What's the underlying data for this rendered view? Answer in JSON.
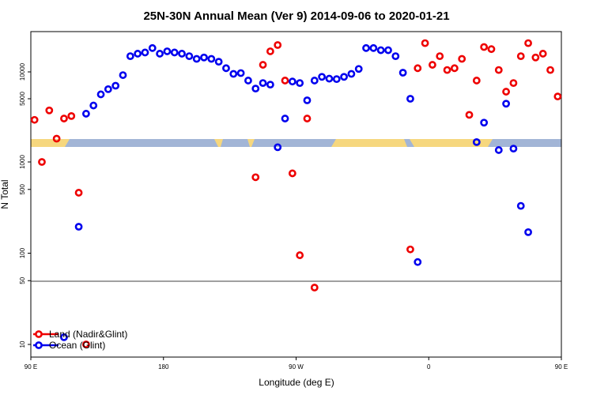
{
  "chart_data": {
    "type": "scatter",
    "title": "25N-30N Annual Mean (Ver 9)   2014-09-06 to 2020-01-21",
    "xlabel": "Longitude (deg E)",
    "ylabel": "N Total",
    "x_scale": "linear",
    "y_scale": "log",
    "xlim": [
      90,
      450
    ],
    "x_ticks": [
      {
        "value": 90,
        "label": "90 E"
      },
      {
        "value": 180,
        "label": "180"
      },
      {
        "value": 270,
        "label": "90 W"
      },
      {
        "value": 360,
        "label": "0"
      },
      {
        "value": 450,
        "label": "90 E"
      },
      {
        "value": 540,
        "label": "180"
      }
    ],
    "y_ticks": [
      {
        "value": 10,
        "label": "10"
      },
      {
        "value": 50,
        "label": "50"
      },
      {
        "value": 100,
        "label": "100"
      },
      {
        "value": 500,
        "label": "500"
      },
      {
        "value": 1000,
        "label": "1000"
      },
      {
        "value": 5000,
        "label": "5000"
      },
      {
        "value": 10000,
        "label": "10000"
      }
    ],
    "legend_position": "bottom-left",
    "series": [
      {
        "name": "Land (Nadir&Glint)",
        "color": "#ee0000",
        "points": [
          [
            92.5,
            2900
          ],
          [
            97.5,
            1000
          ],
          [
            102.5,
            3700
          ],
          [
            107.5,
            1800
          ],
          [
            112.5,
            3000
          ],
          [
            117.5,
            3200
          ],
          [
            122.5,
            460
          ],
          [
            127.5,
            10
          ],
          [
            242.5,
            680
          ],
          [
            247.5,
            12000
          ],
          [
            252.5,
            17000
          ],
          [
            257.5,
            20000
          ],
          [
            262.5,
            8000
          ],
          [
            267.5,
            750
          ],
          [
            272.5,
            95
          ],
          [
            277.5,
            3000
          ],
          [
            282.5,
            42
          ],
          [
            347.5,
            110
          ],
          [
            352.5,
            11000
          ],
          [
            357.5,
            21000
          ],
          [
            362.5,
            12000
          ],
          [
            367.5,
            15000
          ],
          [
            372.5,
            10500
          ],
          [
            377.5,
            11000
          ],
          [
            382.5,
            14000
          ],
          [
            387.5,
            3300
          ],
          [
            392.5,
            8000
          ],
          [
            397.5,
            19000
          ],
          [
            402.5,
            18000
          ],
          [
            407.5,
            10500
          ],
          [
            412.5,
            6000
          ],
          [
            417.5,
            7500
          ],
          [
            422.5,
            15000
          ],
          [
            427.5,
            21000
          ],
          [
            432.5,
            14500
          ],
          [
            437.5,
            16000
          ],
          [
            442.5,
            10500
          ],
          [
            447.5,
            5300
          ],
          [
            452.5,
            4000
          ],
          [
            457.5,
            2900
          ],
          [
            462.5,
            1000
          ],
          [
            467.5,
            3800
          ],
          [
            472.5,
            1700
          ],
          [
            477.5,
            3000
          ],
          [
            482.5,
            3200
          ],
          [
            487.5,
            460
          ],
          [
            492.5,
            10
          ]
        ]
      },
      {
        "name": "Ocean (Glint)",
        "color": "#0000ee",
        "points": [
          [
            112.5,
            12
          ],
          [
            122.5,
            195
          ],
          [
            127.5,
            3400
          ],
          [
            132.5,
            4200
          ],
          [
            137.5,
            5600
          ],
          [
            142.5,
            6400
          ],
          [
            147.5,
            7000
          ],
          [
            152.5,
            9200
          ],
          [
            157.5,
            15000
          ],
          [
            162.5,
            16000
          ],
          [
            167.5,
            16500
          ],
          [
            172.5,
            18500
          ],
          [
            177.5,
            16000
          ],
          [
            182.5,
            17000
          ],
          [
            187.5,
            16500
          ],
          [
            192.5,
            16000
          ],
          [
            197.5,
            15000
          ],
          [
            202.5,
            14000
          ],
          [
            207.5,
            14500
          ],
          [
            212.5,
            14000
          ],
          [
            217.5,
            13000
          ],
          [
            222.5,
            11000
          ],
          [
            227.5,
            9500
          ],
          [
            232.5,
            9700
          ],
          [
            237.5,
            8000
          ],
          [
            242.5,
            6500
          ],
          [
            247.5,
            7500
          ],
          [
            252.5,
            7200
          ],
          [
            257.5,
            1450
          ],
          [
            262.5,
            3000
          ],
          [
            267.5,
            7800
          ],
          [
            272.5,
            7500
          ],
          [
            277.5,
            4800
          ],
          [
            282.5,
            8000
          ],
          [
            287.5,
            8800
          ],
          [
            292.5,
            8400
          ],
          [
            297.5,
            8300
          ],
          [
            302.5,
            8800
          ],
          [
            307.5,
            9500
          ],
          [
            312.5,
            10800
          ],
          [
            317.5,
            18500
          ],
          [
            322.5,
            18500
          ],
          [
            327.5,
            17500
          ],
          [
            332.5,
            17500
          ],
          [
            337.5,
            15000
          ],
          [
            342.5,
            9800
          ],
          [
            347.5,
            5000
          ],
          [
            352.5,
            80
          ],
          [
            392.5,
            1650
          ],
          [
            397.5,
            2700
          ],
          [
            407.5,
            1350
          ],
          [
            412.5,
            4400
          ],
          [
            417.5,
            1400
          ],
          [
            422.5,
            330
          ],
          [
            427.5,
            170
          ],
          [
            472.5,
            12
          ],
          [
            482.5,
            3400
          ],
          [
            487.5,
            195
          ],
          [
            492.5,
            3400
          ]
        ]
      }
    ]
  }
}
